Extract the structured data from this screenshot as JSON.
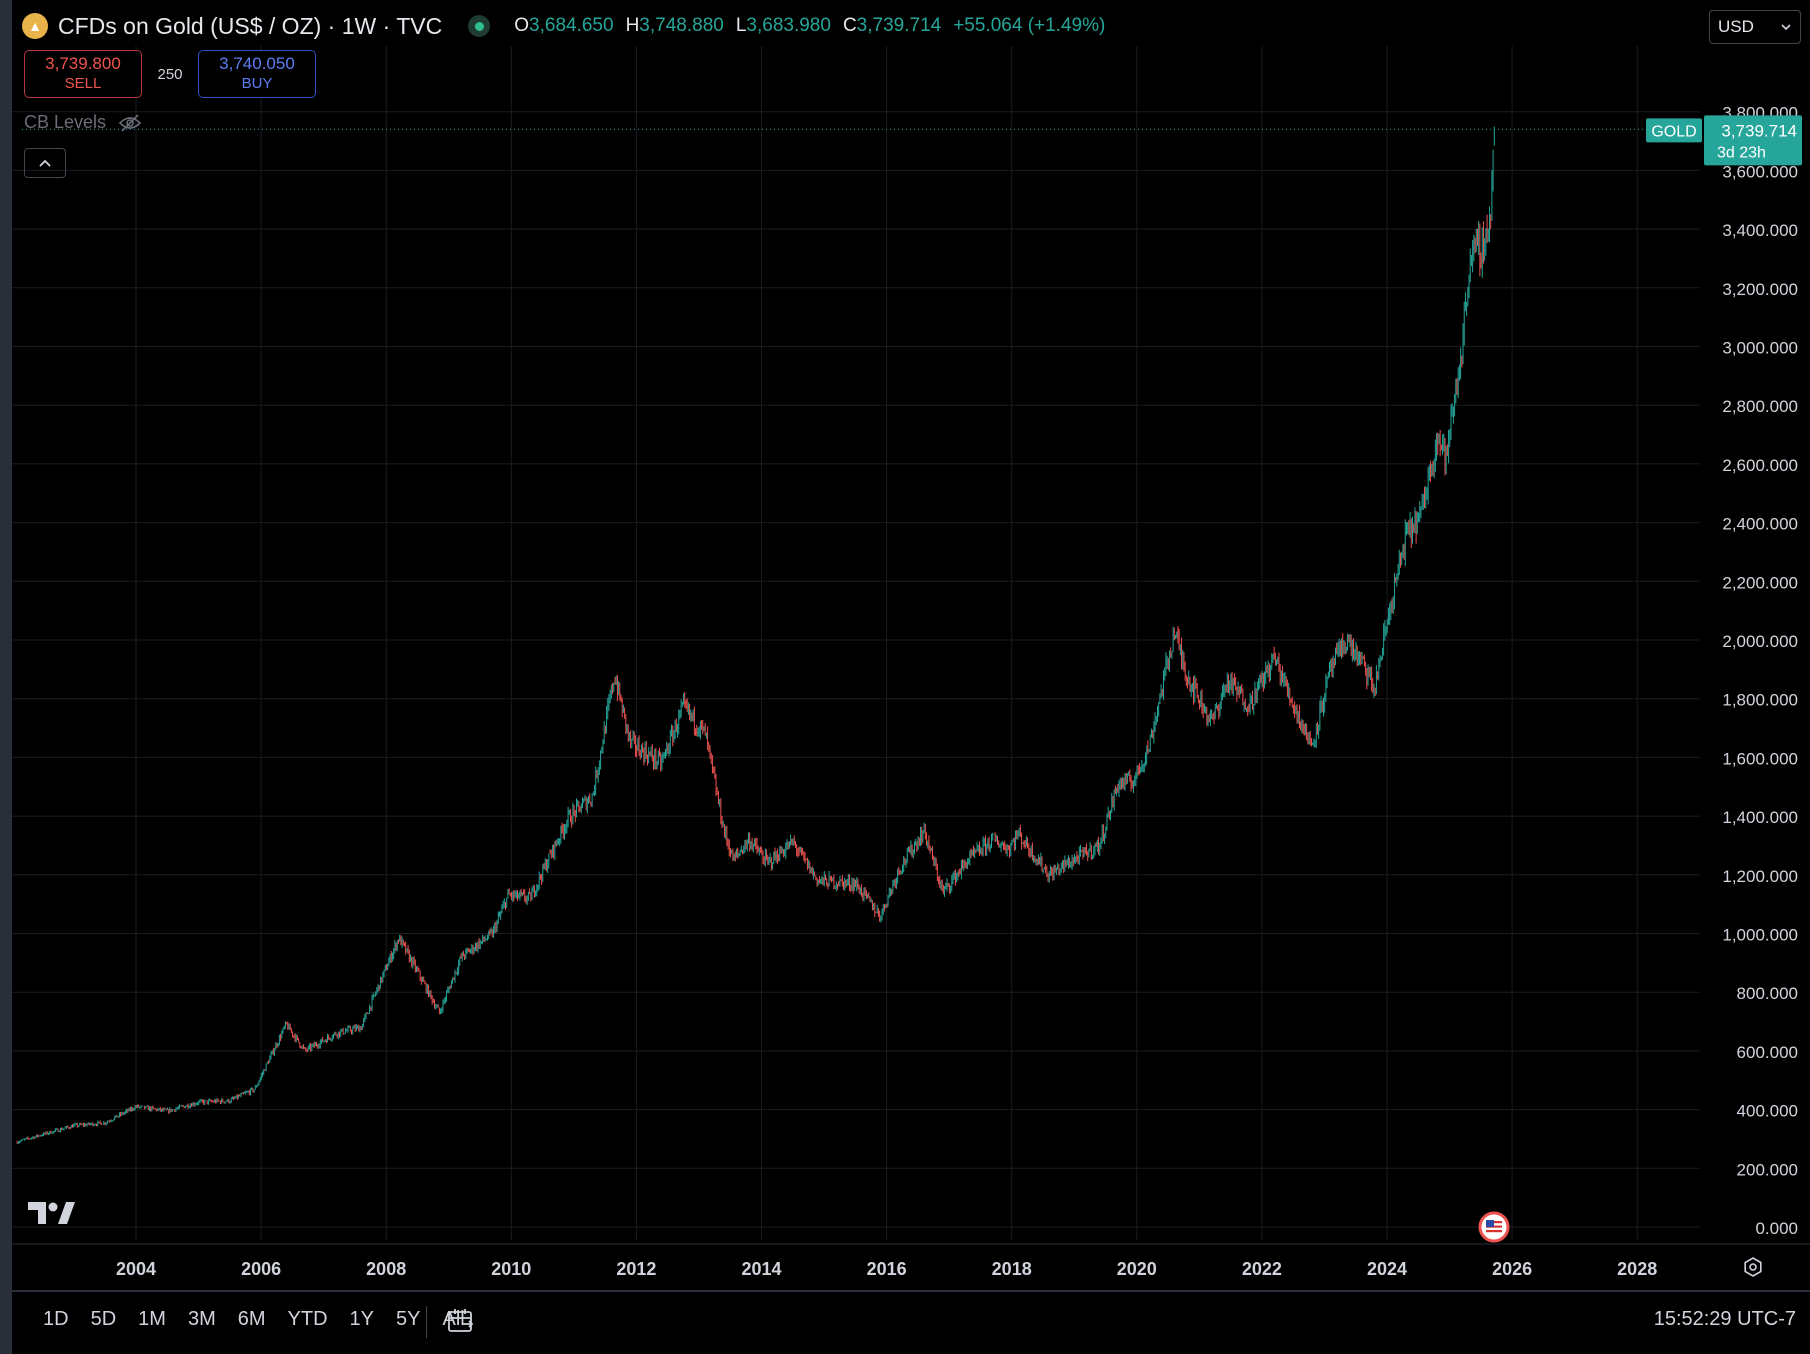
{
  "header": {
    "symbol_title": "CFDs on Gold (US$ / OZ) · 1W · TVC",
    "symbol_icon": "gold-bars-icon",
    "ohlc": {
      "open_label": "O",
      "open": "3,684.650",
      "high_label": "H",
      "high": "3,748.880",
      "low_label": "L",
      "low": "3,683.980",
      "close_label": "C",
      "close": "3,739.714",
      "change": "+55.064 (+1.49%)"
    }
  },
  "trade": {
    "sell_price": "3,739.800",
    "sell_label": "SELL",
    "spread": "250",
    "buy_price": "3,740.050",
    "buy_label": "BUY"
  },
  "indicator": {
    "label": "CB Levels",
    "icon": "eye-off-icon"
  },
  "currency": {
    "value": "USD"
  },
  "price_tag": {
    "symbol": "GOLD",
    "price": "3,739.714",
    "countdown": "3d 23h",
    "color": "#26a69a"
  },
  "colors": {
    "up": "#26a69a",
    "down": "#ef5350",
    "background": "#000000",
    "grid": "#1a1c22"
  },
  "bottom_bar": {
    "ranges": [
      "1D",
      "5D",
      "1M",
      "3M",
      "6M",
      "YTD",
      "1Y",
      "5Y",
      "All"
    ],
    "clock": "15:52:29 UTC-7"
  },
  "chart_data": {
    "type": "candlestick",
    "interval": "1W",
    "x_range": [
      2002.1,
      2029.2
    ],
    "ylim": [
      0,
      4000
    ],
    "y_ticks": [
      0,
      200,
      400,
      600,
      800,
      1000,
      1200,
      1400,
      1600,
      1800,
      2000,
      2200,
      2400,
      2600,
      2800,
      3000,
      3200,
      3400,
      3600,
      3800
    ],
    "y_tick_labels": [
      "0.000",
      "200.000",
      "400.000",
      "600.000",
      "800.000",
      "1,000.000",
      "1,200.000",
      "1,400.000",
      "1,600.000",
      "1,800.000",
      "2,000.000",
      "2,200.000",
      "2,400.000",
      "2,600.000",
      "2,800.000",
      "3,000.000",
      "3,200.000",
      "3,400.000",
      "3,600.000",
      "3,800.000"
    ],
    "x_ticks": [
      2004,
      2006,
      2008,
      2010,
      2012,
      2014,
      2016,
      2018,
      2020,
      2022,
      2024,
      2026,
      2028
    ],
    "x_tick_labels": [
      "2004",
      "2006",
      "2008",
      "2010",
      "2012",
      "2014",
      "2016",
      "2018",
      "2020",
      "2022",
      "2024",
      "2026",
      "2028"
    ],
    "grid": true,
    "last_price": 3739.714,
    "close_path": [
      [
        2002.1,
        290
      ],
      [
        2002.5,
        315
      ],
      [
        2003.0,
        345
      ],
      [
        2003.5,
        355
      ],
      [
        2004.0,
        410
      ],
      [
        2004.5,
        395
      ],
      [
        2005.0,
        425
      ],
      [
        2005.5,
        430
      ],
      [
        2005.9,
        470
      ],
      [
        2006.4,
        690
      ],
      [
        2006.7,
        600
      ],
      [
        2007.2,
        660
      ],
      [
        2007.6,
        680
      ],
      [
        2008.2,
        985
      ],
      [
        2008.6,
        830
      ],
      [
        2008.85,
        730
      ],
      [
        2009.2,
        920
      ],
      [
        2009.7,
        1000
      ],
      [
        2009.95,
        1130
      ],
      [
        2010.3,
        1120
      ],
      [
        2010.9,
        1390
      ],
      [
        2011.3,
        1470
      ],
      [
        2011.65,
        1880
      ],
      [
        2011.9,
        1650
      ],
      [
        2012.4,
        1580
      ],
      [
        2012.75,
        1770
      ],
      [
        2013.1,
        1680
      ],
      [
        2013.4,
        1350
      ],
      [
        2013.55,
        1250
      ],
      [
        2013.8,
        1320
      ],
      [
        2014.1,
        1240
      ],
      [
        2014.5,
        1310
      ],
      [
        2014.9,
        1180
      ],
      [
        2015.5,
        1170
      ],
      [
        2015.9,
        1060
      ],
      [
        2016.2,
        1220
      ],
      [
        2016.6,
        1350
      ],
      [
        2016.9,
        1140
      ],
      [
        2017.3,
        1250
      ],
      [
        2017.7,
        1320
      ],
      [
        2017.95,
        1290
      ],
      [
        2018.1,
        1340
      ],
      [
        2018.6,
        1200
      ],
      [
        2018.9,
        1240
      ],
      [
        2019.4,
        1300
      ],
      [
        2019.7,
        1510
      ],
      [
        2019.95,
        1520
      ],
      [
        2020.2,
        1640
      ],
      [
        2020.6,
        2030
      ],
      [
        2020.8,
        1880
      ],
      [
        2021.2,
        1720
      ],
      [
        2021.45,
        1860
      ],
      [
        2021.8,
        1780
      ],
      [
        2022.2,
        1940
      ],
      [
        2022.5,
        1780
      ],
      [
        2022.8,
        1640
      ],
      [
        2023.1,
        1900
      ],
      [
        2023.35,
        2000
      ],
      [
        2023.6,
        1920
      ],
      [
        2023.8,
        1830
      ],
      [
        2024.0,
        2060
      ],
      [
        2024.3,
        2350
      ],
      [
        2024.55,
        2430
      ],
      [
        2024.8,
        2700
      ],
      [
        2024.95,
        2620
      ],
      [
        2025.2,
        3000
      ],
      [
        2025.32,
        3300
      ],
      [
        2025.55,
        3350
      ],
      [
        2025.65,
        3440
      ],
      [
        2025.72,
        3740
      ]
    ]
  }
}
